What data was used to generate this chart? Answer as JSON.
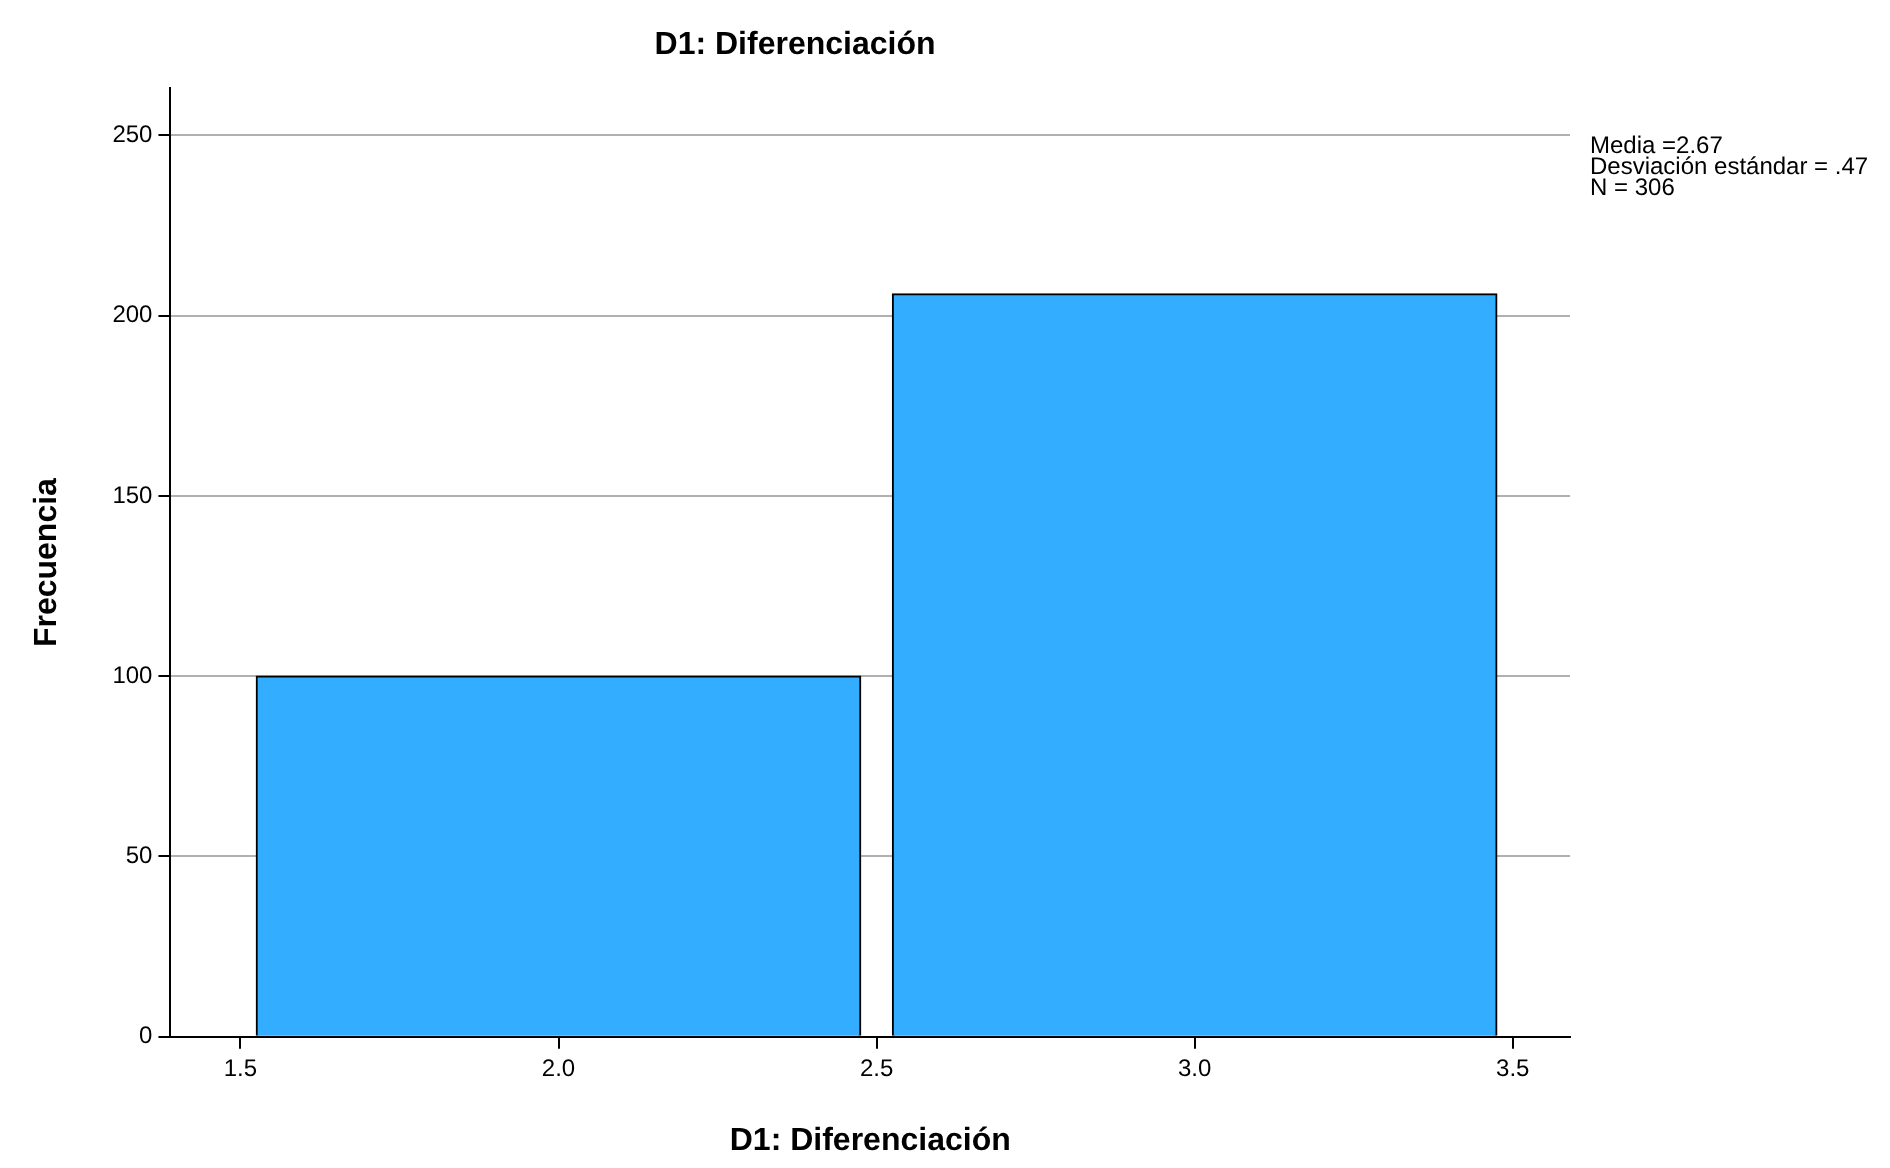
{
  "chart_data": {
    "type": "histogram",
    "title": "D1: Diferenciación",
    "xlabel": "D1: Diferenciación",
    "ylabel": "Frecuencia",
    "bins": [
      1.5,
      2.5,
      3.5
    ],
    "values": [
      100,
      206
    ],
    "color": "#33adff",
    "xlim": [
      1.39,
      3.59
    ],
    "xticks": [
      {
        "value": 1.5,
        "label": "1.5"
      },
      {
        "value": 2,
        "label": "2.0"
      },
      {
        "value": 2.5,
        "label": "2.5"
      },
      {
        "value": 3,
        "label": "3.0"
      },
      {
        "value": 3.5,
        "label": "3.5"
      }
    ],
    "ylim": [
      0,
      263
    ],
    "yticks": [
      0,
      50,
      100,
      150,
      200,
      250
    ],
    "grid": "y",
    "legend": false,
    "annotations": [
      "Media =2.67",
      "Desviación estándar = .47",
      "N = 306"
    ]
  }
}
